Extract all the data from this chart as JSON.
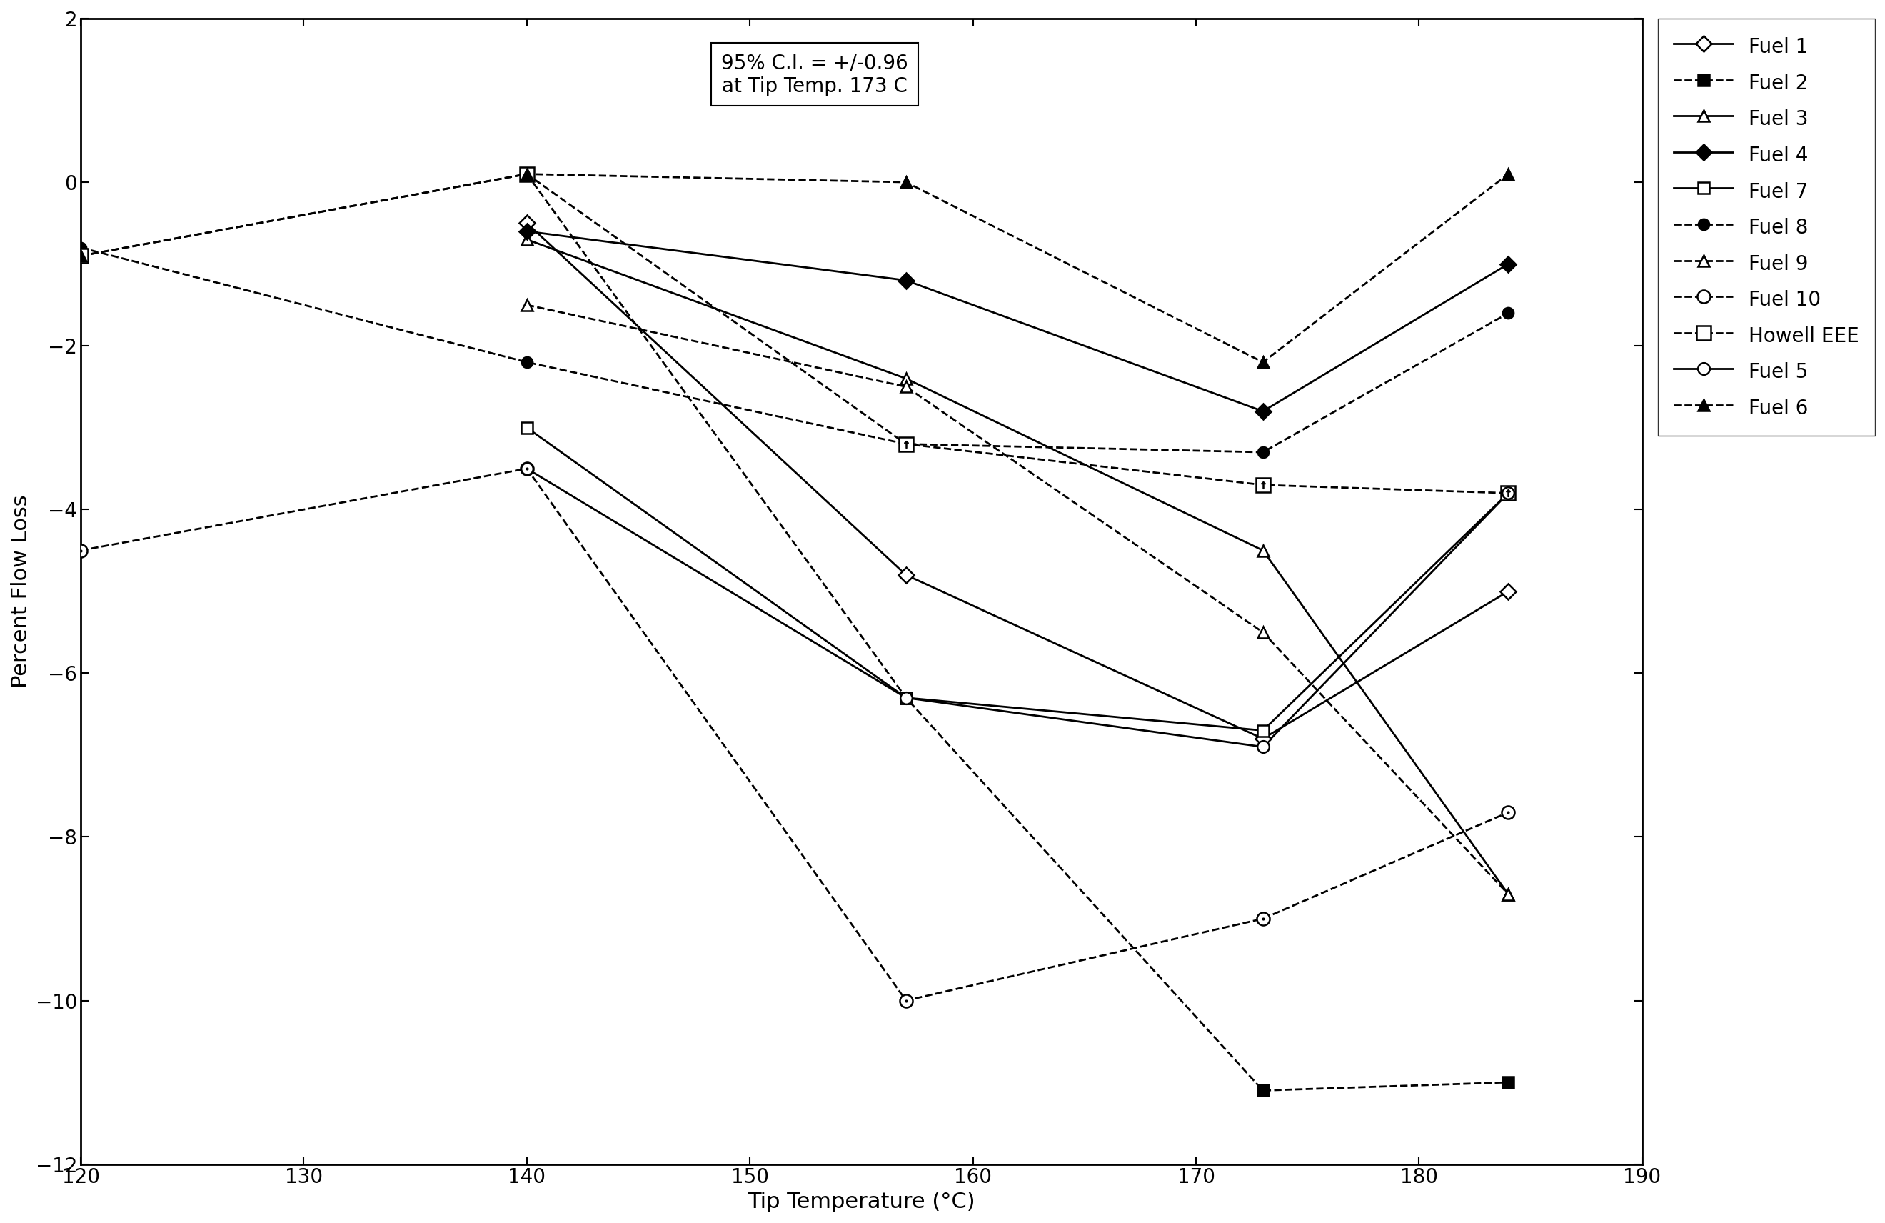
{
  "xlabel": "Tip Temperature (°C)",
  "ylabel": "Percent Flow Loss",
  "annotation": "95% C.I. = +/-0.96\nat Tip Temp. 173 C",
  "xlim": [
    120,
    190
  ],
  "ylim": [
    -12,
    2
  ],
  "xticks": [
    120,
    130,
    140,
    150,
    160,
    170,
    180,
    190
  ],
  "yticks": [
    -12,
    -10,
    -8,
    -6,
    -4,
    -2,
    0,
    2
  ],
  "series": {
    "Fuel 1": {
      "x": [
        140,
        157,
        173,
        184
      ],
      "y": [
        -0.5,
        -4.8,
        -6.8,
        -5.0
      ],
      "ls": "-",
      "marker": "D",
      "mfc": "white",
      "ms": 11,
      "lw": 2.0
    },
    "Fuel 2": {
      "x": [
        140,
        157,
        173,
        184
      ],
      "y": [
        0.1,
        -6.3,
        -11.1,
        -11.0
      ],
      "ls": "--",
      "marker": "s",
      "mfc": "black",
      "ms": 11,
      "lw": 2.0
    },
    "Fuel 3": {
      "x": [
        140,
        157,
        173,
        184
      ],
      "y": [
        -0.7,
        -2.4,
        -4.5,
        -8.7
      ],
      "ls": "-",
      "marker": "^",
      "mfc": "white",
      "ms": 11,
      "lw": 2.0
    },
    "Fuel 4": {
      "x": [
        140,
        157,
        173,
        184
      ],
      "y": [
        -0.6,
        -1.2,
        -2.8,
        -1.0
      ],
      "ls": "-",
      "marker": "D",
      "mfc": "black",
      "ms": 11,
      "lw": 2.0
    },
    "Fuel 7": {
      "x": [
        140,
        157,
        173,
        184
      ],
      "y": [
        -3.0,
        -6.3,
        -6.7,
        -3.8
      ],
      "ls": "-",
      "marker": "s",
      "mfc": "white",
      "ms": 11,
      "lw": 2.0
    },
    "Fuel 8": {
      "x": [
        120,
        140,
        157,
        173,
        184
      ],
      "y": [
        -0.8,
        -2.2,
        -3.2,
        -3.3,
        -1.6
      ],
      "ls": "--",
      "marker": "o",
      "mfc": "black",
      "ms": 11,
      "lw": 2.0
    },
    "Fuel 9": {
      "x": [
        140,
        157,
        173,
        184
      ],
      "y": [
        -1.5,
        -2.5,
        -5.5,
        -8.7
      ],
      "ls": "--",
      "marker": "^",
      "mfc": "white",
      "ms": 11,
      "lw": 2.0
    },
    "Fuel 10": {
      "x": [
        120,
        140,
        157,
        173,
        184
      ],
      "y": [
        -4.5,
        -3.5,
        -10.0,
        -9.0,
        -7.7
      ],
      "ls": "--",
      "marker": "o",
      "mfc": "white",
      "ms": 13,
      "lw": 2.0,
      "inner_dot": true
    },
    "Howell EEE": {
      "x": [
        120,
        140,
        157,
        173,
        184
      ],
      "y": [
        -0.9,
        0.1,
        -3.2,
        -3.7,
        -3.8
      ],
      "ls": "--",
      "marker": "s",
      "mfc": "white",
      "ms": 15,
      "lw": 2.0,
      "inner_arrow": true
    },
    "Fuel 5": {
      "x": [
        140,
        157,
        173,
        184
      ],
      "y": [
        -3.5,
        -6.3,
        -6.9,
        -3.8
      ],
      "ls": "-",
      "marker": "o",
      "mfc": "white",
      "ms": 12,
      "lw": 2.0
    },
    "Fuel 6": {
      "x": [
        120,
        140,
        157,
        173,
        184
      ],
      "y": [
        -0.9,
        0.1,
        0.0,
        -2.2,
        0.1
      ],
      "ls": "--",
      "marker": "^",
      "mfc": "black",
      "ms": 12,
      "lw": 2.0
    }
  },
  "legend_order": [
    "Fuel 1",
    "Fuel 2",
    "Fuel 3",
    "Fuel 4",
    "Fuel 7",
    "Fuel 8",
    "Fuel 9",
    "Fuel 10",
    "Howell EEE",
    "Fuel 5",
    "Fuel 6"
  ],
  "background_color": "#ffffff",
  "font_size": 22,
  "tick_fontsize": 20
}
